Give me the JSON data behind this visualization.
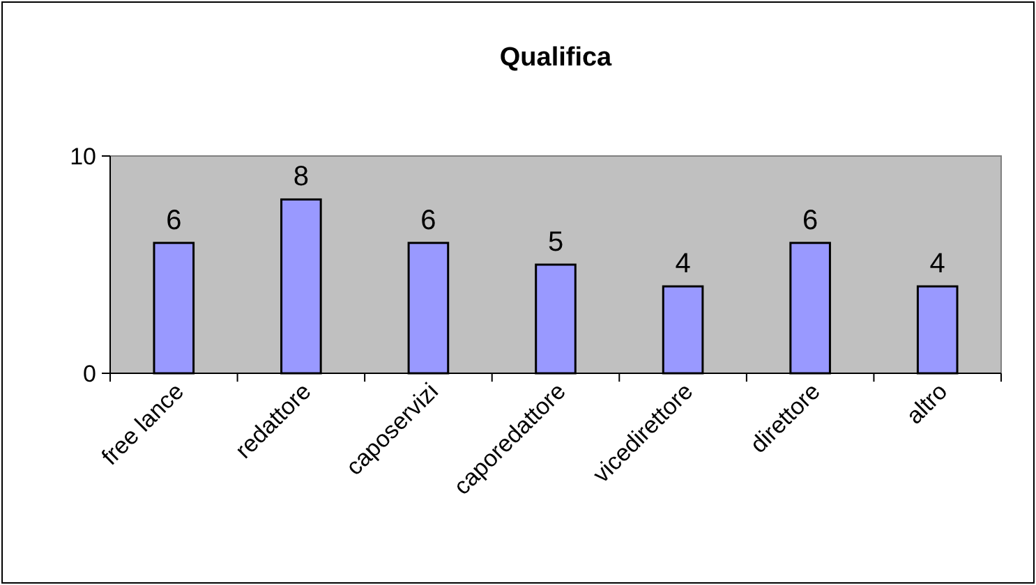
{
  "chart_data": {
    "type": "bar",
    "title": "Qualifica",
    "categories": [
      "free lance",
      "redattore",
      "caposervizi",
      "caporedattore",
      "vicedirettore",
      "direttore",
      "altro"
    ],
    "values": [
      6,
      8,
      6,
      5,
      4,
      6,
      4
    ],
    "color": "#9999ff",
    "ylim": [
      0,
      10
    ],
    "yticks": [
      0,
      10
    ],
    "data_labels": true
  }
}
